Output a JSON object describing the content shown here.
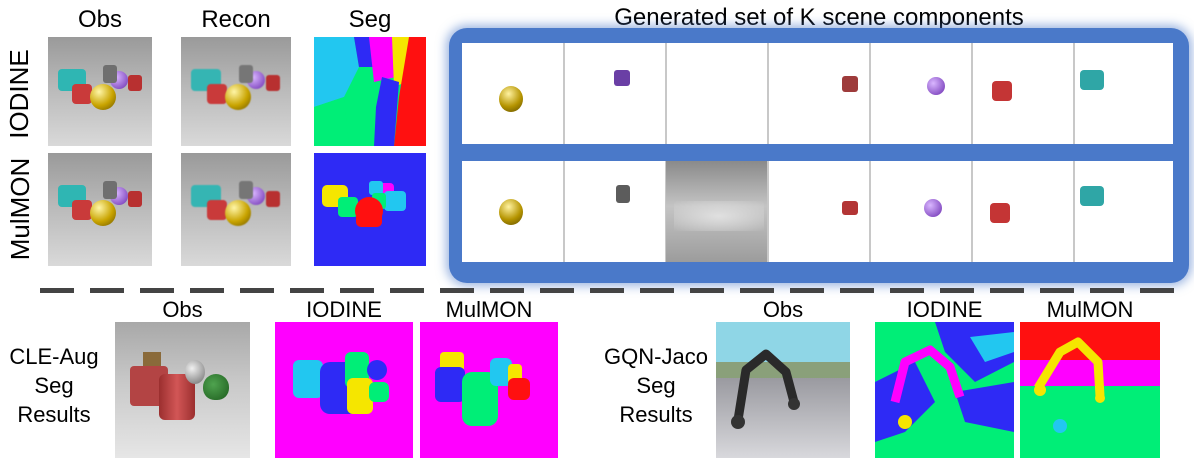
{
  "headers": {
    "obs": "Obs",
    "recon": "Recon",
    "seg": "Seg",
    "components": "Generated set of K scene components"
  },
  "row_labels": {
    "iodine": "IODINE",
    "mulmon": "MulMON"
  },
  "bottom": {
    "cle_label": "CLE-Aug\nSeg\nResults",
    "cle_label_lines": [
      "CLE-Aug",
      "Seg",
      "Results"
    ],
    "cle_obs": "Obs",
    "cle_iodine": "IODINE",
    "cle_mulmon": "MulMON",
    "gqn_label_lines": [
      "GQN-Jaco",
      "Seg",
      "Results"
    ],
    "gqn_obs": "Obs",
    "gqn_iodine": "IODINE",
    "gqn_mulmon": "MulMON"
  },
  "colors": {
    "panel_blue": "#4a79c9",
    "seg_magenta": "#ff00ff",
    "seg_blue": "#2e2af5",
    "seg_green": "#00ee77",
    "seg_red": "#ff1010",
    "seg_yellow": "#f5e600",
    "seg_cyan": "#22c7f0"
  },
  "component_objects": {
    "iodine": [
      "gold-sphere",
      "purple-cylinder",
      "empty",
      "red-cylinder",
      "purple-sphere",
      "red-cylinder",
      "cyan-cylinder"
    ],
    "mulmon": [
      "gold-sphere",
      "gray-cylinder",
      "background",
      "red-cylinder",
      "purple-sphere",
      "red-cylinder",
      "cyan-cylinder"
    ]
  }
}
